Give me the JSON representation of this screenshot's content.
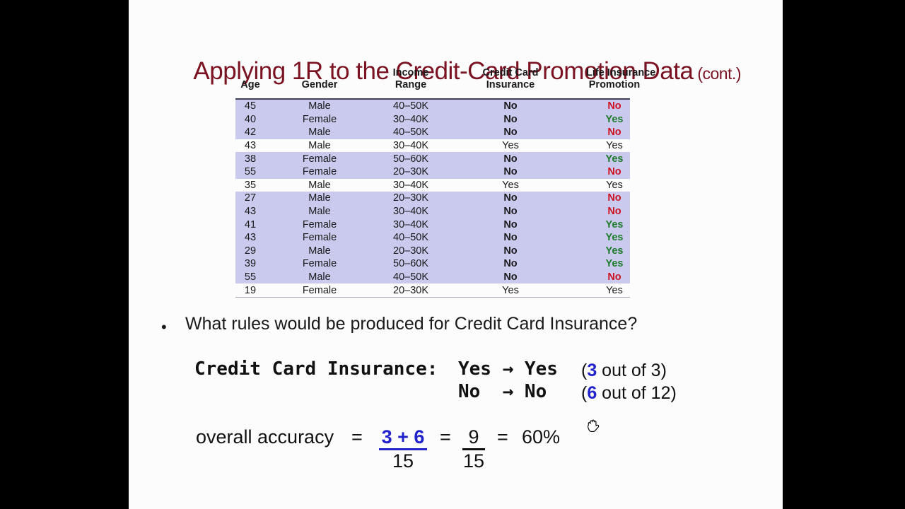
{
  "slide": {
    "title": "Applying 1R to the Credit-Card Promotion Data",
    "title_suffix": " (cont.)"
  },
  "colors": {
    "title": "#7a1222",
    "row_highlight": "#cacaee",
    "no_red": "#cc1122",
    "yes_green": "#1e7b2c",
    "count_blue": "#2222cc"
  },
  "table": {
    "columns": [
      {
        "line1": "",
        "line2": "Age"
      },
      {
        "line1": "",
        "line2": "Gender"
      },
      {
        "line1": "Income",
        "line2": "Range"
      },
      {
        "line1": "Credit Card",
        "line2": "Insurance"
      },
      {
        "line1": "Life Insurance",
        "line2": "Promotion"
      }
    ],
    "rows": [
      {
        "age": "45",
        "gender": "Male",
        "income": "40–50K",
        "cc": "No",
        "life": "No",
        "highlighted": true,
        "life_color": "red"
      },
      {
        "age": "40",
        "gender": "Female",
        "income": "30–40K",
        "cc": "No",
        "life": "Yes",
        "highlighted": true,
        "life_color": "green"
      },
      {
        "age": "42",
        "gender": "Male",
        "income": "40–50K",
        "cc": "No",
        "life": "No",
        "highlighted": true,
        "life_color": "red"
      },
      {
        "age": "43",
        "gender": "Male",
        "income": "30–40K",
        "cc": "Yes",
        "life": "Yes",
        "highlighted": false,
        "life_color": "black"
      },
      {
        "age": "38",
        "gender": "Female",
        "income": "50–60K",
        "cc": "No",
        "life": "Yes",
        "highlighted": true,
        "life_color": "green"
      },
      {
        "age": "55",
        "gender": "Female",
        "income": "20–30K",
        "cc": "No",
        "life": "No",
        "highlighted": true,
        "life_color": "red"
      },
      {
        "age": "35",
        "gender": "Male",
        "income": "30–40K",
        "cc": "Yes",
        "life": "Yes",
        "highlighted": false,
        "life_color": "black"
      },
      {
        "age": "27",
        "gender": "Male",
        "income": "20–30K",
        "cc": "No",
        "life": "No",
        "highlighted": true,
        "life_color": "red"
      },
      {
        "age": "43",
        "gender": "Male",
        "income": "30–40K",
        "cc": "No",
        "life": "No",
        "highlighted": true,
        "life_color": "red"
      },
      {
        "age": "41",
        "gender": "Female",
        "income": "30–40K",
        "cc": "No",
        "life": "Yes",
        "highlighted": true,
        "life_color": "green"
      },
      {
        "age": "43",
        "gender": "Female",
        "income": "40–50K",
        "cc": "No",
        "life": "Yes",
        "highlighted": true,
        "life_color": "green"
      },
      {
        "age": "29",
        "gender": "Male",
        "income": "20–30K",
        "cc": "No",
        "life": "Yes",
        "highlighted": true,
        "life_color": "green"
      },
      {
        "age": "39",
        "gender": "Female",
        "income": "50–60K",
        "cc": "No",
        "life": "Yes",
        "highlighted": true,
        "life_color": "green"
      },
      {
        "age": "55",
        "gender": "Male",
        "income": "40–50K",
        "cc": "No",
        "life": "No",
        "highlighted": true,
        "life_color": "red"
      },
      {
        "age": "19",
        "gender": "Female",
        "income": "20–30K",
        "cc": "Yes",
        "life": "Yes",
        "highlighted": false,
        "life_color": "black"
      }
    ]
  },
  "bullet": {
    "marker": "•",
    "text": "What rules would be produced for Credit Card Insurance?"
  },
  "rules": {
    "label": "Credit Card Insurance:",
    "line1_mapping": "Yes → Yes",
    "line2_mapping": "No  → No",
    "line1_stat": {
      "open": "(",
      "count": "3",
      "rest": " out of 3)"
    },
    "line2_stat": {
      "open": "(",
      "count": "6",
      "rest": " out of 12)"
    }
  },
  "accuracy": {
    "label": "overall accuracy",
    "eq1": "=",
    "numerator1": "3 + 6",
    "denominator1": "15",
    "eq2": "=",
    "numerator2": "9",
    "denominator2": "15",
    "eq3": "=",
    "result": "60%"
  }
}
